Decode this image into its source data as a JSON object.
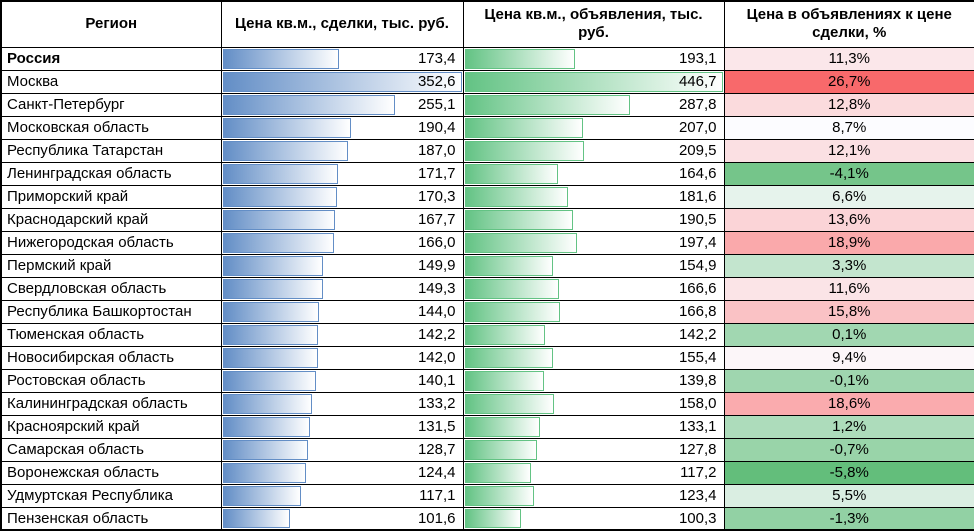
{
  "colors": {
    "bar_blue": "#638EC6",
    "bar_green": "#63C384",
    "scale_green": "#63BE7B",
    "scale_white": "#FCFCFF",
    "scale_red": "#F8696B",
    "grid": "#000000"
  },
  "chart_data": {
    "type": "table",
    "title": "",
    "layout_hints": {
      "deal_bar": "blue gradient data bar, scaled 0 to column max",
      "listing_bar": "green gradient data bar, scaled 0 to column max",
      "ratio_fill": "3-color scale green(min) - white(median) - red(max)",
      "number_format": "one decimal, comma separator"
    },
    "columns": [
      {
        "key": "region",
        "label": "Регион"
      },
      {
        "key": "deal",
        "label": "Цена кв.м., сделки, тыс. руб."
      },
      {
        "key": "listing",
        "label": "Цена кв.м., объявления, тыс. руб."
      },
      {
        "key": "ratio",
        "label": "Цена в объявлениях к цене сделки, %"
      }
    ],
    "rows": [
      {
        "region": "Россия",
        "deal": 173.4,
        "listing": 193.1,
        "ratio": 11.3,
        "bold": true
      },
      {
        "region": "Москва",
        "deal": 352.6,
        "listing": 446.7,
        "ratio": 26.7
      },
      {
        "region": "Санкт-Петербург",
        "deal": 255.1,
        "listing": 287.8,
        "ratio": 12.8
      },
      {
        "region": "Московская область",
        "deal": 190.4,
        "listing": 207.0,
        "ratio": 8.7
      },
      {
        "region": "Республика Татарстан",
        "deal": 187.0,
        "listing": 209.5,
        "ratio": 12.1
      },
      {
        "region": "Ленинградская область",
        "deal": 171.7,
        "listing": 164.6,
        "ratio": -4.1
      },
      {
        "region": "Приморский край",
        "deal": 170.3,
        "listing": 181.6,
        "ratio": 6.6
      },
      {
        "region": "Краснодарский край",
        "deal": 167.7,
        "listing": 190.5,
        "ratio": 13.6
      },
      {
        "region": "Нижегородская область",
        "deal": 166.0,
        "listing": 197.4,
        "ratio": 18.9
      },
      {
        "region": "Пермский край",
        "deal": 149.9,
        "listing": 154.9,
        "ratio": 3.3
      },
      {
        "region": "Свердловская область",
        "deal": 149.3,
        "listing": 166.6,
        "ratio": 11.6
      },
      {
        "region": "Республика Башкортостан",
        "deal": 144.0,
        "listing": 166.8,
        "ratio": 15.8
      },
      {
        "region": "Тюменская область",
        "deal": 142.2,
        "listing": 142.2,
        "ratio": 0.1
      },
      {
        "region": "Новосибирская область",
        "deal": 142.0,
        "listing": 155.4,
        "ratio": 9.4
      },
      {
        "region": "Ростовская область",
        "deal": 140.1,
        "listing": 139.8,
        "ratio": -0.1
      },
      {
        "region": "Калининградская область",
        "deal": 133.2,
        "listing": 158.0,
        "ratio": 18.6
      },
      {
        "region": "Красноярский край",
        "deal": 131.5,
        "listing": 133.1,
        "ratio": 1.2
      },
      {
        "region": "Самарская область",
        "deal": 128.7,
        "listing": 127.8,
        "ratio": -0.7
      },
      {
        "region": "Воронежская область",
        "deal": 124.4,
        "listing": 117.2,
        "ratio": -5.8
      },
      {
        "region": "Удмуртская Республика",
        "deal": 117.1,
        "listing": 123.4,
        "ratio": 5.5
      },
      {
        "region": "Пензенская область",
        "deal": 101.6,
        "listing": 100.3,
        "ratio": -1.3
      }
    ]
  }
}
